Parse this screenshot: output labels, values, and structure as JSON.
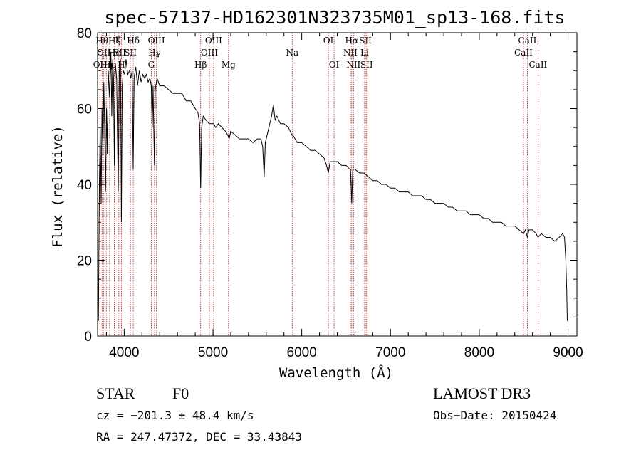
{
  "chart_data": {
    "type": "line",
    "title": "spec-57137-HD162301N323735M01_sp13-168.fits",
    "xlabel": "Wavelength (Å)",
    "ylabel": "Flux (relative)",
    "xlim": [
      3700,
      9100
    ],
    "ylim": [
      0,
      80
    ],
    "xticks": [
      4000,
      5000,
      6000,
      7000,
      8000,
      9000
    ],
    "yticks": [
      0,
      20,
      40,
      60,
      80
    ],
    "x_tick_labels": [
      "4000",
      "5000",
      "6000",
      "7000",
      "8000",
      "9000"
    ],
    "y_tick_labels": [
      "0",
      "20",
      "40",
      "60",
      "80"
    ],
    "series": [
      {
        "name": "spectrum",
        "points": [
          [
            3700,
            2
          ],
          [
            3705,
            14
          ],
          [
            3710,
            4
          ],
          [
            3720,
            40
          ],
          [
            3730,
            55
          ],
          [
            3740,
            35
          ],
          [
            3750,
            60
          ],
          [
            3760,
            50
          ],
          [
            3770,
            67
          ],
          [
            3780,
            55
          ],
          [
            3790,
            38
          ],
          [
            3800,
            60
          ],
          [
            3810,
            48
          ],
          [
            3820,
            70
          ],
          [
            3835,
            63
          ],
          [
            3850,
            75
          ],
          [
            3860,
            58
          ],
          [
            3870,
            73
          ],
          [
            3880,
            68
          ],
          [
            3889,
            45
          ],
          [
            3900,
            72
          ],
          [
            3915,
            68
          ],
          [
            3933,
            38
          ],
          [
            3945,
            70
          ],
          [
            3958,
            73
          ],
          [
            3968,
            30
          ],
          [
            3978,
            66
          ],
          [
            3990,
            70
          ],
          [
            4005,
            69
          ],
          [
            4020,
            73
          ],
          [
            4040,
            69
          ],
          [
            4060,
            70
          ],
          [
            4075,
            68
          ],
          [
            4090,
            70
          ],
          [
            4101,
            44
          ],
          [
            4112,
            68
          ],
          [
            4130,
            71
          ],
          [
            4150,
            66
          ],
          [
            4170,
            70
          ],
          [
            4190,
            67
          ],
          [
            4210,
            69
          ],
          [
            4230,
            68
          ],
          [
            4250,
            69
          ],
          [
            4270,
            67
          ],
          [
            4290,
            68
          ],
          [
            4305,
            66
          ],
          [
            4316,
            55
          ],
          [
            4325,
            66
          ],
          [
            4340,
            45
          ],
          [
            4350,
            65
          ],
          [
            4370,
            68
          ],
          [
            4400,
            66
          ],
          [
            4450,
            66
          ],
          [
            4500,
            65
          ],
          [
            4550,
            64
          ],
          [
            4600,
            64
          ],
          [
            4650,
            64
          ],
          [
            4700,
            62
          ],
          [
            4750,
            62
          ],
          [
            4800,
            60
          ],
          [
            4830,
            59
          ],
          [
            4850,
            56
          ],
          [
            4861,
            39
          ],
          [
            4872,
            55
          ],
          [
            4890,
            58
          ],
          [
            4920,
            57
          ],
          [
            4957,
            56
          ],
          [
            4980,
            56
          ],
          [
            5007,
            56
          ],
          [
            5030,
            55
          ],
          [
            5060,
            56
          ],
          [
            5100,
            55
          ],
          [
            5140,
            54
          ],
          [
            5167,
            53
          ],
          [
            5183,
            52
          ],
          [
            5200,
            54
          ],
          [
            5250,
            53
          ],
          [
            5300,
            52
          ],
          [
            5350,
            52
          ],
          [
            5400,
            52
          ],
          [
            5450,
            51
          ],
          [
            5500,
            52
          ],
          [
            5540,
            52
          ],
          [
            5560,
            50
          ],
          [
            5577,
            42
          ],
          [
            5590,
            51
          ],
          [
            5620,
            54
          ],
          [
            5660,
            58
          ],
          [
            5680,
            61
          ],
          [
            5700,
            57
          ],
          [
            5720,
            58
          ],
          [
            5760,
            56
          ],
          [
            5800,
            56
          ],
          [
            5850,
            55
          ],
          [
            5890,
            53
          ],
          [
            5900,
            53
          ],
          [
            5950,
            51
          ],
          [
            6000,
            51
          ],
          [
            6050,
            50
          ],
          [
            6100,
            49
          ],
          [
            6150,
            49
          ],
          [
            6200,
            48
          ],
          [
            6250,
            47
          ],
          [
            6280,
            45
          ],
          [
            6300,
            43
          ],
          [
            6320,
            46
          ],
          [
            6364,
            46
          ],
          [
            6400,
            46
          ],
          [
            6450,
            45
          ],
          [
            6500,
            45
          ],
          [
            6540,
            44
          ],
          [
            6550,
            44
          ],
          [
            6563,
            35
          ],
          [
            6575,
            44
          ],
          [
            6600,
            44
          ],
          [
            6650,
            43
          ],
          [
            6700,
            43
          ],
          [
            6750,
            42
          ],
          [
            6800,
            41
          ],
          [
            6850,
            41
          ],
          [
            6900,
            40
          ],
          [
            6950,
            40
          ],
          [
            7000,
            39
          ],
          [
            7050,
            39
          ],
          [
            7100,
            38
          ],
          [
            7150,
            38
          ],
          [
            7200,
            38
          ],
          [
            7250,
            37
          ],
          [
            7300,
            37
          ],
          [
            7350,
            37
          ],
          [
            7400,
            36
          ],
          [
            7450,
            36
          ],
          [
            7500,
            35
          ],
          [
            7550,
            35
          ],
          [
            7600,
            35
          ],
          [
            7650,
            34
          ],
          [
            7700,
            34
          ],
          [
            7750,
            33
          ],
          [
            7800,
            33
          ],
          [
            7850,
            33
          ],
          [
            7900,
            32
          ],
          [
            7950,
            32
          ],
          [
            8000,
            32
          ],
          [
            8050,
            31
          ],
          [
            8100,
            31
          ],
          [
            8150,
            30
          ],
          [
            8200,
            30
          ],
          [
            8250,
            30
          ],
          [
            8300,
            29
          ],
          [
            8350,
            29
          ],
          [
            8400,
            29
          ],
          [
            8450,
            28
          ],
          [
            8498,
            27
          ],
          [
            8520,
            28
          ],
          [
            8542,
            26
          ],
          [
            8560,
            28
          ],
          [
            8600,
            28
          ],
          [
            8640,
            27
          ],
          [
            8662,
            26
          ],
          [
            8700,
            27
          ],
          [
            8750,
            26
          ],
          [
            8800,
            26
          ],
          [
            8850,
            25
          ],
          [
            8900,
            26
          ],
          [
            8940,
            27
          ],
          [
            8960,
            26
          ],
          [
            8975,
            20
          ],
          [
            8985,
            12
          ],
          [
            8992,
            4
          ]
        ]
      }
    ],
    "lines": [
      {
        "wl": 3727,
        "label": "OII",
        "row": 2
      },
      {
        "wl": 3750,
        "label": "Hθ",
        "row": 0
      },
      {
        "wl": 3770,
        "label": "OII",
        "row": 1
      },
      {
        "wl": 3798,
        "label": "Hη",
        "row": 2
      },
      {
        "wl": 3835,
        "label": "Hε",
        "row": 2
      },
      {
        "wl": 3889,
        "label": "Hζ",
        "row": 0
      },
      {
        "wl": 3890,
        "label": "He",
        "row": 1
      },
      {
        "wl": 3934,
        "label": "K",
        "row": 0
      },
      {
        "wl": 3950,
        "label": "SII",
        "row": 1
      },
      {
        "wl": 3968,
        "label": "H",
        "row": 2
      },
      {
        "wl": 4102,
        "label": "Hδ",
        "row": 0
      },
      {
        "wl": 4070,
        "label": "SII",
        "row": 1
      },
      {
        "wl": 4305,
        "label": "G",
        "row": 2
      },
      {
        "wl": 4341,
        "label": "Hγ",
        "row": 1
      },
      {
        "wl": 4363,
        "label": "OIII",
        "row": 0
      },
      {
        "wl": 4861,
        "label": "Hβ",
        "row": 2
      },
      {
        "wl": 4959,
        "label": "OIII",
        "row": 1
      },
      {
        "wl": 5007,
        "label": "OIII",
        "row": 0
      },
      {
        "wl": 5175,
        "label": "Mg",
        "row": 2
      },
      {
        "wl": 5893,
        "label": "Na",
        "row": 1
      },
      {
        "wl": 6300,
        "label": "OI",
        "row": 0
      },
      {
        "wl": 6364,
        "label": "OI",
        "row": 2
      },
      {
        "wl": 6548,
        "label": "NII",
        "row": 1
      },
      {
        "wl": 6563,
        "label": "Hα",
        "row": 0
      },
      {
        "wl": 6583,
        "label": "NII",
        "row": 2
      },
      {
        "wl": 6708,
        "label": "Li",
        "row": 1
      },
      {
        "wl": 6717,
        "label": "SII",
        "row": 0
      },
      {
        "wl": 6731,
        "label": "SII",
        "row": 2
      },
      {
        "wl": 8498,
        "label": "CaII",
        "row": 1
      },
      {
        "wl": 8542,
        "label": "CaII",
        "row": 0
      },
      {
        "wl": 8662,
        "label": "CaII",
        "row": 2
      }
    ],
    "line_color": "#b22222"
  },
  "info": {
    "type": "STAR",
    "subclass": "F0",
    "survey": "LAMOST DR3",
    "cz": "cz = −201.3 ± 48.4 km/s",
    "obs_date": "Obs−Date: 20150424",
    "coords": "RA = 247.47372, DEC =  33.43843"
  }
}
